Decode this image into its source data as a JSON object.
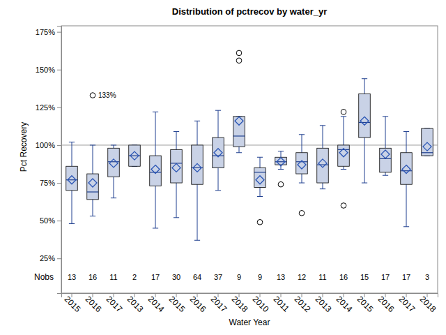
{
  "chart_data": {
    "type": "box",
    "title": "Distribution of pctrecov by water_yr",
    "x_label": "Water Year",
    "y_label": "Pct Recovery",
    "categories": [
      "2015",
      "2016",
      "2017",
      "2013",
      "2014",
      "2015",
      "2016",
      "2017",
      "2018",
      "2010",
      "2011",
      "2012",
      "2013",
      "2014",
      "2015",
      "2016",
      "2017",
      "2018"
    ],
    "color": "#c9d2e6",
    "boxes": [
      {
        "min": 48,
        "q1": 70,
        "median": 77,
        "q3": 86,
        "max": 102,
        "mean": 77,
        "outliers": []
      },
      {
        "min": 53,
        "q1": 64,
        "median": 69,
        "q3": 81,
        "max": 100,
        "mean": 75,
        "outliers": [
          133
        ],
        "outlier_labels": [
          "133%"
        ]
      },
      {
        "min": 65,
        "q1": 79,
        "median": 89,
        "q3": 98,
        "max": 100,
        "mean": 88,
        "outliers": []
      },
      {
        "min": 86,
        "q1": 86,
        "median": 93,
        "q3": 100,
        "max": 100,
        "mean": 93,
        "outliers": []
      },
      {
        "min": 45,
        "q1": 73,
        "median": 82,
        "q3": 93,
        "max": 122,
        "mean": 84,
        "outliers": []
      },
      {
        "min": 52,
        "q1": 75,
        "median": 88,
        "q3": 97,
        "max": 109,
        "mean": 85,
        "outliers": []
      },
      {
        "min": 37,
        "q1": 74,
        "median": 85,
        "q3": 100,
        "max": 116,
        "mean": 85,
        "outliers": []
      },
      {
        "min": 70,
        "q1": 85,
        "median": 93,
        "q3": 105,
        "max": 123,
        "mean": 95,
        "outliers": []
      },
      {
        "min": 95,
        "q1": 99,
        "median": 106,
        "q3": 119,
        "max": 119,
        "mean": 116,
        "outliers": [
          156,
          161
        ]
      },
      {
        "min": 66,
        "q1": 72,
        "median": 82,
        "q3": 85,
        "max": 92,
        "mean": 77,
        "outliers": [
          49
        ]
      },
      {
        "min": 84,
        "q1": 87,
        "median": 89,
        "q3": 92,
        "max": 96,
        "mean": 89,
        "outliers": [
          74
        ]
      },
      {
        "min": 75,
        "q1": 81,
        "median": 89,
        "q3": 95,
        "max": 107,
        "mean": 87,
        "outliers": [
          55
        ]
      },
      {
        "min": 71,
        "q1": 75,
        "median": 87,
        "q3": 98,
        "max": 113,
        "mean": 88,
        "outliers": []
      },
      {
        "min": 84,
        "q1": 86,
        "median": 97,
        "q3": 100,
        "max": 119,
        "mean": 95,
        "outliers": [
          122,
          60
        ]
      },
      {
        "min": 75,
        "q1": 105,
        "median": 115,
        "q3": 134,
        "max": 144,
        "mean": 116,
        "outliers": []
      },
      {
        "min": 80,
        "q1": 82,
        "median": 91,
        "q3": 98,
        "max": 119,
        "mean": 94,
        "outliers": []
      },
      {
        "min": 46,
        "q1": 74,
        "median": 83,
        "q3": 95,
        "max": 109,
        "mean": 84,
        "outliers": []
      },
      {
        "min": 93,
        "q1": 93,
        "median": 95,
        "q3": 111,
        "max": 111,
        "mean": 99,
        "outliers": []
      }
    ],
    "nobs_label": "Nobs",
    "nobs": [
      13,
      16,
      11,
      2,
      17,
      30,
      64,
      37,
      9,
      9,
      13,
      12,
      11,
      16,
      15,
      17,
      17,
      3
    ],
    "reference_line": 100,
    "ylim": [
      2,
      179
    ],
    "yticks": [
      {
        "value": 25,
        "label": "25%"
      },
      {
        "value": 50,
        "label": "50%"
      },
      {
        "value": 75,
        "label": "75%"
      },
      {
        "value": 100,
        "label": "100%"
      },
      {
        "value": 125,
        "label": "125%"
      },
      {
        "value": 150,
        "label": "150%"
      },
      {
        "value": 175,
        "label": "175%"
      }
    ]
  }
}
